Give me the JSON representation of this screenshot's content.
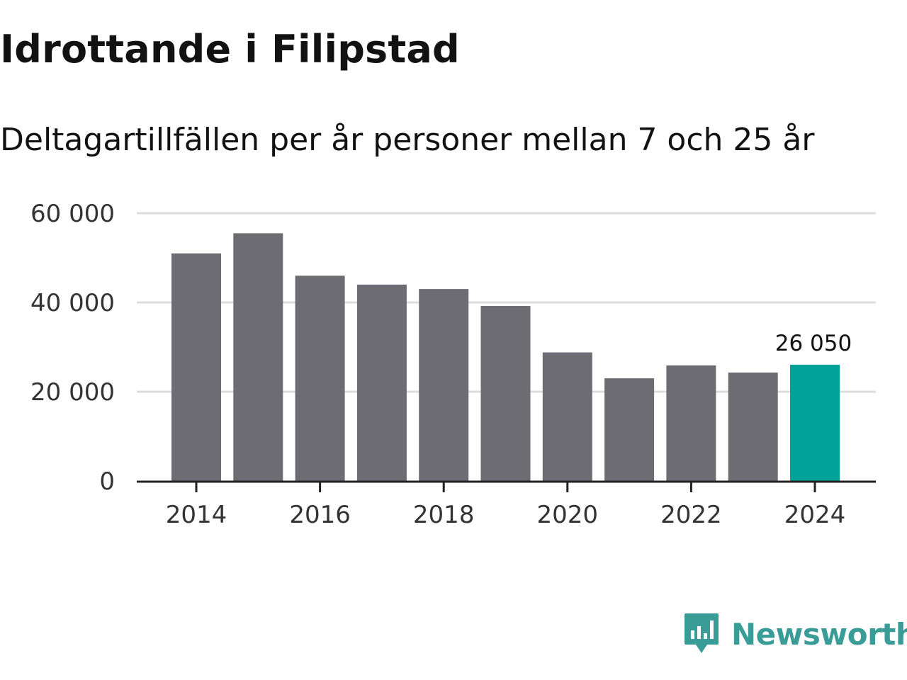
{
  "title": "Idrottande i Filipstad",
  "subtitle": "Deltagartillfällen per år personer mellan 7 och 25 år",
  "brand": {
    "name": "Newsworthy",
    "color": "#3a9c96"
  },
  "colors": {
    "bar": "#6d6c73",
    "highlight": "#00a39a",
    "grid": "#dddddd",
    "axis": "#222222"
  },
  "chart_data": {
    "type": "bar",
    "title": "Idrottande i Filipstad",
    "subtitle": "Deltagartillfällen per år personer mellan 7 och 25 år",
    "xlabel": "",
    "ylabel": "",
    "categories": [
      2014,
      2015,
      2016,
      2017,
      2018,
      2019,
      2020,
      2021,
      2022,
      2023,
      2024
    ],
    "values": [
      51000,
      55500,
      46000,
      44000,
      43000,
      39200,
      28800,
      23000,
      25900,
      24300,
      26050
    ],
    "highlight_index": 10,
    "highlight_label": "26 050",
    "ylim": [
      0,
      60000
    ],
    "y_ticks": [
      0,
      20000,
      40000,
      60000
    ],
    "y_tick_labels": [
      "0",
      "20 000",
      "40 000",
      "60 000"
    ],
    "x_ticks": [
      2014,
      2016,
      2018,
      2020,
      2022,
      2024
    ],
    "x_tick_labels": [
      "2014",
      "2016",
      "2018",
      "2020",
      "2022",
      "2024"
    ],
    "grid": true,
    "legend": "none"
  }
}
